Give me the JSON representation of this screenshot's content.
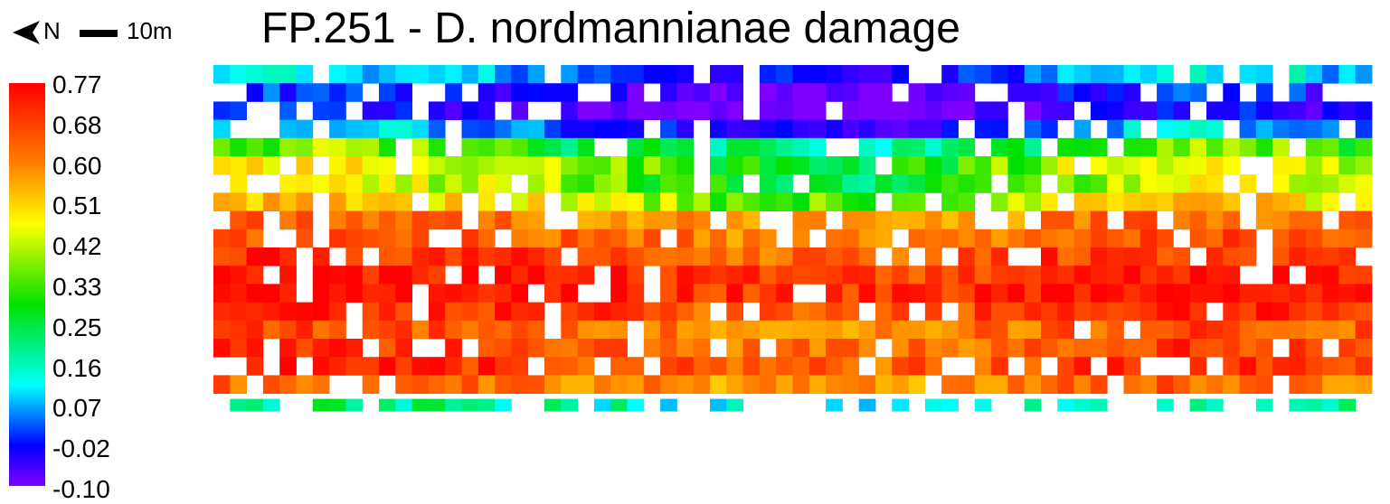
{
  "title": "FP.251 - D. nordmannianae damage",
  "north_label": "N",
  "scale_label": "10m",
  "chart_data": {
    "type": "heatmap",
    "title": "FP.251 - D. nordmannianae damage",
    "color_scale": {
      "min": -0.1,
      "max": 0.77,
      "tick_labels": [
        "0.77",
        "0.68",
        "0.60",
        "0.51",
        "0.42",
        "0.33",
        "0.25",
        "0.16",
        "0.07",
        "-0.02",
        "-0.10"
      ],
      "colors": [
        "#8000ff",
        "#0000ff",
        "#00ffff",
        "#00e000",
        "#ffff00",
        "#ff8000",
        "#ff0000"
      ]
    },
    "rows": 19,
    "cols": 70,
    "null_color": "#ffffff",
    "row_values": [
      0.14,
      0.02,
      -0.01,
      0.12,
      0.35,
      0.45,
      0.42,
      0.5,
      0.64,
      0.66,
      0.7,
      0.74,
      0.76,
      0.71,
      0.66,
      0.69,
      0.7,
      0.64,
      0.24
    ],
    "col_offsets": [
      0.05,
      0.06,
      0.04,
      0.02,
      0.0,
      -0.04,
      -0.07,
      -0.1,
      -0.12,
      -0.13,
      -0.1,
      -0.06,
      0.0,
      0.04,
      0.06,
      0.04,
      0.0
    ]
  }
}
